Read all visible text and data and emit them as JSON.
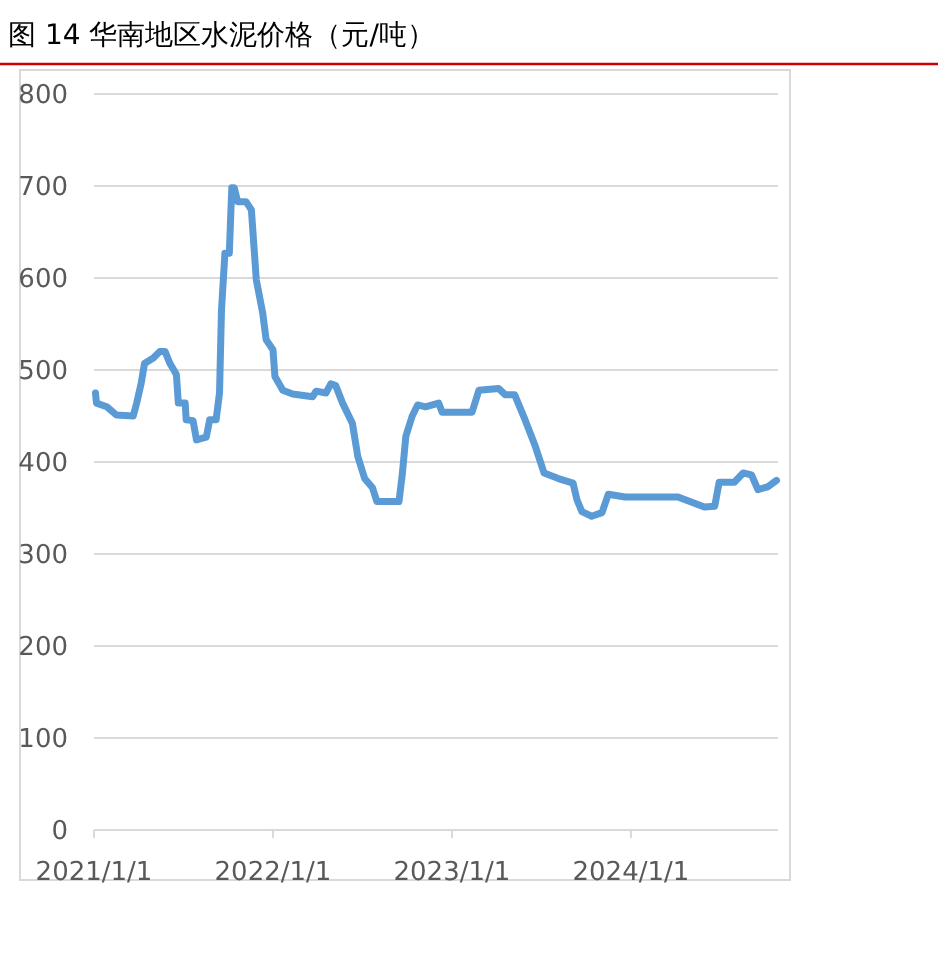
{
  "chart_data": {
    "type": "line",
    "title": "图 14 华南地区水泥价格（元/吨）",
    "x": [
      "2021-01-04",
      "2021-01-06",
      "2021-01-27",
      "2021-02-16",
      "2021-03-22",
      "2021-03-29",
      "2021-04-07",
      "2021-04-14",
      "2021-05-02",
      "2021-05-15",
      "2021-05-26",
      "2021-06-05",
      "2021-06-18",
      "2021-06-22",
      "2021-07-06",
      "2021-07-08",
      "2021-07-22",
      "2021-07-29",
      "2021-08-18",
      "2021-08-25",
      "2021-09-07",
      "2021-09-14",
      "2021-09-18",
      "2021-09-25",
      "2021-10-04",
      "2021-10-09",
      "2021-10-14",
      "2021-10-21",
      "2021-11-07",
      "2021-11-18",
      "2021-11-28",
      "2021-12-11",
      "2021-12-18",
      "2022-01-01",
      "2022-01-05",
      "2022-01-21",
      "2022-02-10",
      "2022-03-23",
      "2022-03-30",
      "2022-04-19",
      "2022-04-29",
      "2022-05-09",
      "2022-05-23",
      "2022-06-12",
      "2022-06-23",
      "2022-07-07",
      "2022-07-23",
      "2022-08-01",
      "2022-09-15",
      "2022-09-22",
      "2022-09-29",
      "2022-10-12",
      "2022-10-23",
      "2022-11-08",
      "2022-12-05",
      "2022-12-12",
      "2023-02-11",
      "2023-02-25",
      "2023-04-06",
      "2023-04-20",
      "2023-05-09",
      "2023-05-30",
      "2023-06-20",
      "2023-07-08",
      "2023-08-06",
      "2023-09-05",
      "2023-09-13",
      "2023-09-23",
      "2023-10-13",
      "2023-11-03",
      "2023-11-16",
      "2023-12-20",
      "2024-04-06",
      "2024-05-30",
      "2024-06-20",
      "2024-06-29",
      "2024-07-30",
      "2024-08-17",
      "2024-09-03",
      "2024-09-16",
      "2024-10-06",
      "2024-10-24"
    ],
    "values": [
      475,
      464,
      460,
      451,
      450,
      464,
      485,
      507,
      513,
      520,
      520,
      507,
      495,
      464,
      464,
      446,
      445,
      424,
      427,
      446,
      446,
      475,
      565,
      627,
      627,
      698,
      698,
      683,
      683,
      674,
      598,
      562,
      533,
      522,
      493,
      478,
      474,
      471,
      477,
      475,
      485,
      483,
      464,
      442,
      406,
      382,
      372,
      357,
      357,
      388,
      428,
      450,
      462,
      460,
      464,
      454,
      454,
      478,
      480,
      473,
      473,
      446,
      417,
      388,
      382,
      377,
      359,
      346,
      341,
      345,
      365,
      362,
      362,
      351,
      352,
      378,
      378,
      388,
      386,
      370,
      373,
      380
    ],
    "color": "#5b9bd5",
    "xlim": [
      "2021-01-01",
      "2024-10-27"
    ],
    "xticks": [
      {
        "value": "2021-01-01",
        "label": "2021/1/1"
      },
      {
        "value": "2022-01-01",
        "label": "2022/1/1"
      },
      {
        "value": "2023-01-01",
        "label": "2023/1/1"
      },
      {
        "value": "2024-01-01",
        "label": "2024/1/1"
      }
    ],
    "ylim": [
      0,
      800
    ],
    "yticks": [
      0,
      100,
      200,
      300,
      400,
      500,
      600,
      700,
      800
    ],
    "grid": "y"
  }
}
